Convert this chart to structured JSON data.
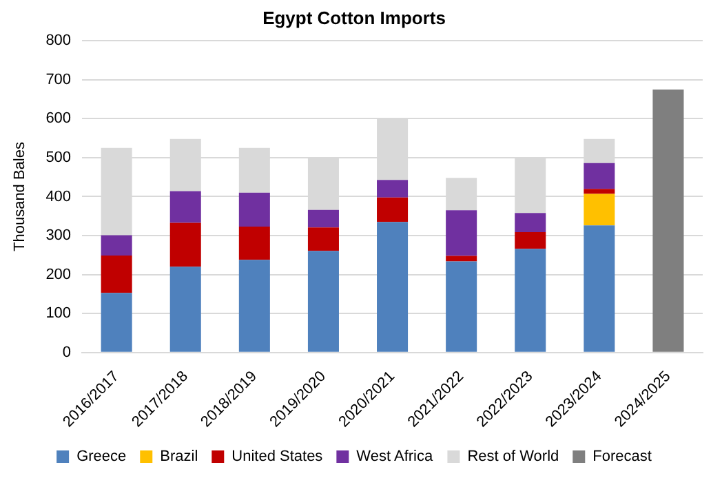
{
  "chart_data": {
    "type": "bar",
    "title": "Egypt Cotton Imports",
    "ylabel": "Thousand Bales",
    "stacked": true,
    "grid": "y",
    "legend": "bottom",
    "categories": [
      "2016/2017",
      "2017/2018",
      "2018/2019",
      "2019/2020",
      "2020/2021",
      "2021/2022",
      "2022/2023",
      "2023/2024",
      "2024/2025"
    ],
    "series": [
      {
        "name": "Greece",
        "color": "#4f81bd",
        "values": [
          153,
          220,
          238,
          261,
          335,
          234,
          266,
          326,
          null
        ]
      },
      {
        "name": "Brazil",
        "color": "#ffc000",
        "values": [
          null,
          null,
          null,
          null,
          null,
          null,
          null,
          81,
          null
        ]
      },
      {
        "name": "United States",
        "color": "#c00000",
        "values": [
          96,
          113,
          85,
          60,
          63,
          14,
          43,
          13,
          null
        ]
      },
      {
        "name": "West Africa",
        "color": "#7030a0",
        "values": [
          52,
          81,
          87,
          45,
          45,
          117,
          49,
          66,
          null
        ]
      },
      {
        "name": "Rest of World",
        "color": "#d9d9d9",
        "values": [
          224,
          134,
          115,
          132,
          156,
          83,
          140,
          62,
          null
        ]
      },
      {
        "name": "Forecast",
        "color": "#7f7f7f",
        "values": [
          null,
          null,
          null,
          null,
          null,
          null,
          null,
          null,
          675
        ]
      }
    ],
    "ylim": [
      0,
      800
    ],
    "yticks": [
      0,
      100,
      200,
      300,
      400,
      500,
      600,
      700,
      800
    ]
  }
}
